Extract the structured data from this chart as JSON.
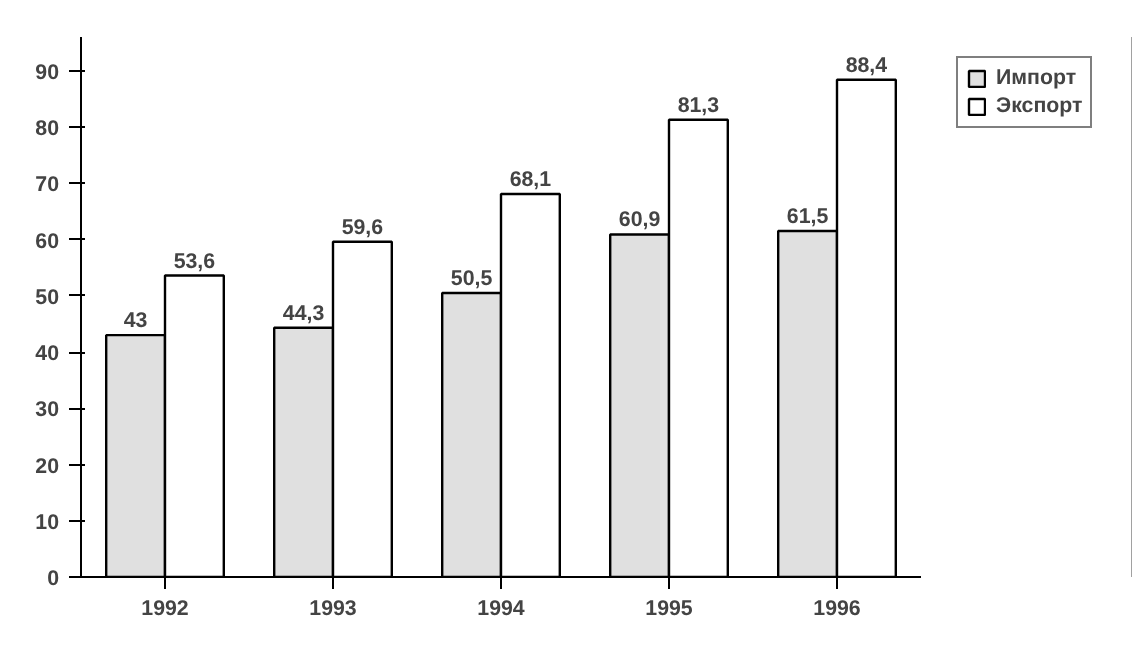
{
  "chart_data": {
    "type": "bar",
    "categories": [
      "1992",
      "1993",
      "1994",
      "1995",
      "1996"
    ],
    "series": [
      {
        "name": "Импорт",
        "color": "#e0e0e0",
        "values": [
          43,
          44.3,
          50.5,
          60.9,
          61.5
        ],
        "value_labels": [
          "43",
          "44,3",
          "50,5",
          "60,9",
          "61,5"
        ]
      },
      {
        "name": "Экспорт",
        "color": "#ffffff",
        "values": [
          53.6,
          59.6,
          68.1,
          81.3,
          88.4
        ],
        "value_labels": [
          "53,6",
          "59,6",
          "68,1",
          "81,3",
          "88,4"
        ]
      }
    ],
    "ylim": [
      0,
      96
    ],
    "yticks": [
      0,
      10,
      20,
      30,
      40,
      50,
      60,
      70,
      80,
      90
    ],
    "grid": false,
    "legend": "top right"
  }
}
